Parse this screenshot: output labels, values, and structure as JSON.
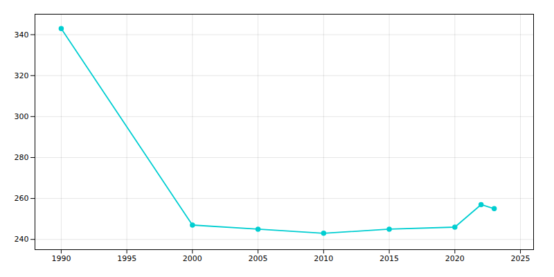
{
  "chart_data": {
    "type": "line",
    "x": [
      1990,
      2000,
      2005,
      2010,
      2015,
      2020,
      2022,
      2023
    ],
    "values": [
      343,
      247,
      245,
      243,
      245,
      246,
      257,
      255
    ],
    "color": "#00CED1",
    "marker": "circle",
    "xlim": [
      1988,
      2026
    ],
    "ylim": [
      235,
      350
    ],
    "xticks": [
      1990,
      1995,
      2000,
      2005,
      2010,
      2015,
      2020,
      2025
    ],
    "yticks": [
      240,
      260,
      280,
      300,
      320,
      340
    ],
    "grid": true
  }
}
